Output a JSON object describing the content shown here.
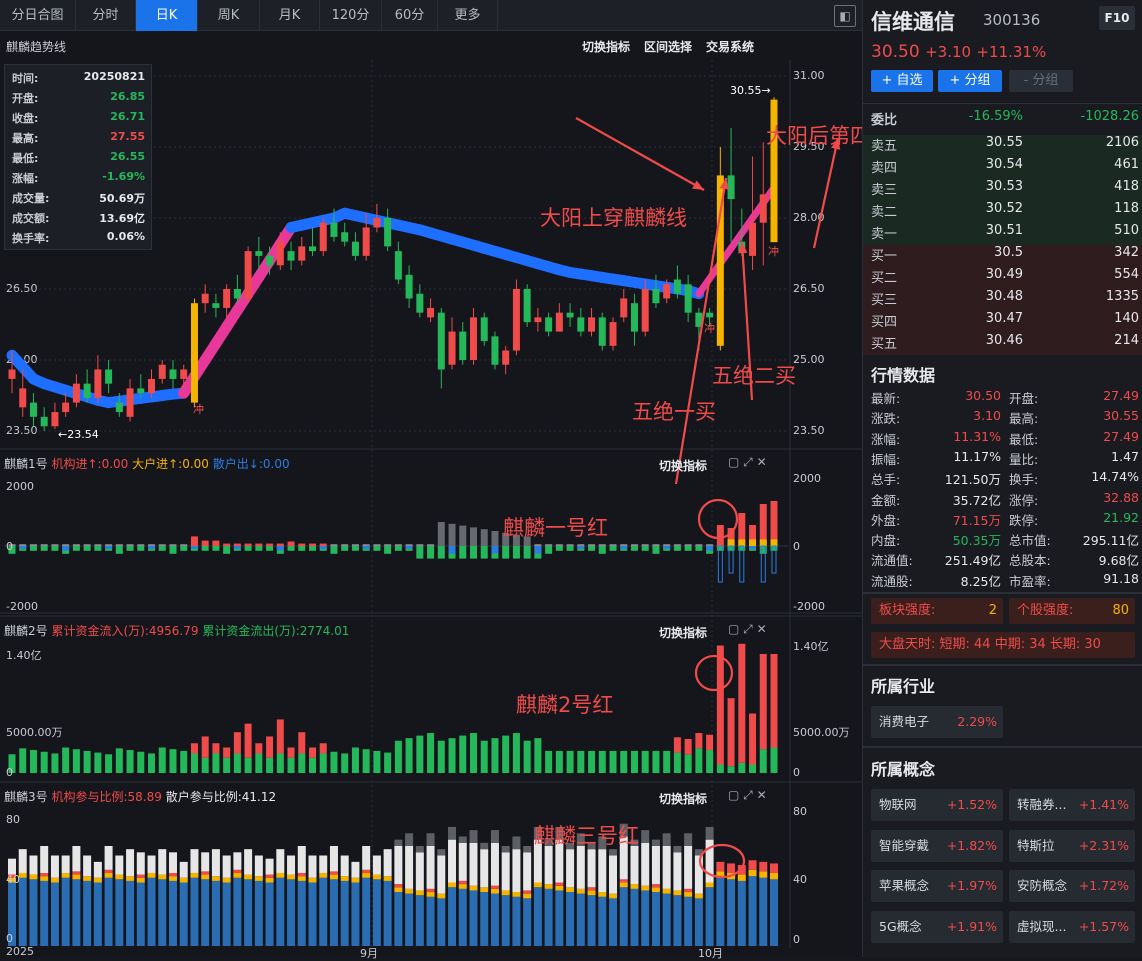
{
  "tabs": [
    "分日合图",
    "分时",
    "日K",
    "周K",
    "月K",
    "120分",
    "60分",
    "更多"
  ],
  "active_tab": "日K",
  "main_chart": {
    "title": "麒麟趋势线",
    "tools": [
      "切换指标",
      "区间选择",
      "交易系统"
    ],
    "y_ticks": [
      "31.00",
      "29.50",
      "28.00",
      "26.50",
      "25.00",
      "23.50"
    ],
    "y_ticks_left": [
      "26.50",
      "25.00",
      "23.50"
    ],
    "high_label": "30.55→",
    "low_label": "←23.54",
    "chong": "冲",
    "tooltip": [
      {
        "k": "时间:",
        "v": "20250821",
        "c": "#e6e8ec"
      },
      {
        "k": "开盘:",
        "v": "26.85",
        "c": "#25b85a"
      },
      {
        "k": "收盘:",
        "v": "26.71",
        "c": "#25b85a"
      },
      {
        "k": "最高:",
        "v": "27.55",
        "c": "#f04b4b"
      },
      {
        "k": "最低:",
        "v": "26.55",
        "c": "#25b85a"
      },
      {
        "k": "涨幅:",
        "v": "-1.69%",
        "c": "#25b85a"
      },
      {
        "k": "成交量:",
        "v": "50.69万",
        "c": "#e6e8ec"
      },
      {
        "k": "成交额:",
        "v": "13.69亿",
        "c": "#e6e8ec"
      },
      {
        "k": "换手率:",
        "v": "0.06%",
        "c": "#e6e8ec"
      }
    ],
    "annotations": {
      "a1": "大阳上穿麒麟线",
      "a2": "大阳后第四天",
      "a3": "五绝二买",
      "a4": "五绝一买"
    }
  },
  "panel1": {
    "name": "麒麟1号",
    "i1": "机构进↑:0.00",
    "i2": "大户进↑:0.00",
    "i3": "散户出↓:0.00",
    "tool": "切换指标",
    "left_ticks": [
      "2000",
      "0",
      "-2000"
    ],
    "right_ticks": [
      "2000",
      "0",
      "-2000"
    ],
    "annotation": "麒麟一号红"
  },
  "panel2": {
    "name": "麒麟2号",
    "i1": "累计资金流入(万):4956.79",
    "i2": "累计资金流出(万):2774.01",
    "tool": "切换指标",
    "left_ticks": [
      "1.40亿",
      "5000.00万",
      "0"
    ],
    "right_ticks": [
      "1.40亿",
      "5000.00万",
      "0"
    ],
    "annotation": "麒麟2号红"
  },
  "panel3": {
    "name": "麒麟3号",
    "i1": "机构参与比例:58.89",
    "i2": "散户参与比例:41.12",
    "tool": "切换指标",
    "left_ticks": [
      "80",
      "40",
      "0"
    ],
    "right_ticks": [
      "80",
      "40",
      "0"
    ],
    "annotation": "麒麟三号红"
  },
  "x_labels": [
    "2025",
    "9月",
    "10月"
  ],
  "stock": {
    "name": "信维通信",
    "code": "300136",
    "f10": "F10",
    "price": "30.50",
    "change": "+3.10",
    "pct": "+11.31%",
    "btn_add": "+ 自选",
    "btn_group": "+ 分组",
    "btn_sub": "- 分组"
  },
  "orderbook": {
    "title": "委比",
    "ratio": "-16.59%",
    "diff": "-1028.26",
    "sell": [
      [
        "卖五",
        "30.55",
        "2106"
      ],
      [
        "卖四",
        "30.54",
        "461"
      ],
      [
        "卖三",
        "30.53",
        "418"
      ],
      [
        "卖二",
        "30.52",
        "118"
      ],
      [
        "卖一",
        "30.51",
        "510"
      ]
    ],
    "buy": [
      [
        "买一",
        "30.5",
        "342"
      ],
      [
        "买二",
        "30.49",
        "554"
      ],
      [
        "买三",
        "30.48",
        "1335"
      ],
      [
        "买四",
        "30.47",
        "140"
      ],
      [
        "买五",
        "30.46",
        "214"
      ]
    ]
  },
  "quotes": {
    "title": "行情数据",
    "rows": [
      [
        "最新:",
        "30.50",
        "red",
        "开盘:",
        "27.49",
        "red"
      ],
      [
        "涨跌:",
        "3.10",
        "red",
        "最高:",
        "30.55",
        "red"
      ],
      [
        "涨幅:",
        "11.31%",
        "red",
        "最低:",
        "27.49",
        "red"
      ],
      [
        "振幅:",
        "11.17%",
        "w",
        "量比:",
        "1.47",
        "w"
      ],
      [
        "总手:",
        "121.50万",
        "w",
        "换手:",
        "14.74%",
        "w"
      ],
      [
        "金额:",
        "35.72亿",
        "w",
        "涨停:",
        "32.88",
        "red"
      ],
      [
        "外盘:",
        "71.15万",
        "red",
        "跌停:",
        "21.92",
        "green"
      ],
      [
        "内盘:",
        "50.35万",
        "green",
        "总市值:",
        "295.11亿",
        "w"
      ],
      [
        "流通值:",
        "251.49亿",
        "w",
        "总股本:",
        "9.68亿",
        "w"
      ],
      [
        "流通股:",
        "8.25亿",
        "w",
        "市盈率:",
        "91.18",
        "w"
      ]
    ]
  },
  "strength": {
    "board_label": "板块强度:",
    "board_val": "2",
    "stock_label": "个股强度:",
    "stock_val": "80"
  },
  "market": {
    "text": "大盘天时: 短期: 44 中期: 34 长期: 30"
  },
  "industry": {
    "title": "所属行业",
    "name": "消费电子",
    "pct": "2.29%"
  },
  "concepts": {
    "title": "所属概念",
    "items": [
      [
        "物联网",
        "+1.52%"
      ],
      [
        "转融券...",
        "+1.41%"
      ],
      [
        "智能穿戴",
        "+1.82%"
      ],
      [
        "特斯拉",
        "+2.31%"
      ],
      [
        "苹果概念",
        "+1.97%"
      ],
      [
        "安防概念",
        "+1.72%"
      ],
      [
        "5G概念",
        "+1.91%"
      ],
      [
        "虚拟现...",
        "+1.57%"
      ]
    ]
  },
  "colors": {
    "up": "#f04b4b",
    "down": "#25b85a",
    "yellow": "#f5b400",
    "blue": "#1e6fff",
    "magenta": "#e8389a",
    "accent": "#1a73e8"
  }
}
